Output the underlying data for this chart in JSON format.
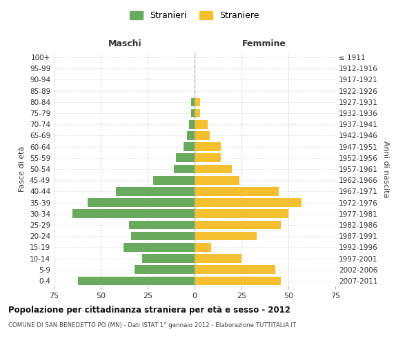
{
  "age_groups": [
    "0-4",
    "5-9",
    "10-14",
    "15-19",
    "20-24",
    "25-29",
    "30-34",
    "35-39",
    "40-44",
    "45-49",
    "50-54",
    "55-59",
    "60-64",
    "65-69",
    "70-74",
    "75-79",
    "80-84",
    "85-89",
    "90-94",
    "95-99",
    "100+"
  ],
  "birth_years": [
    "2007-2011",
    "2002-2006",
    "1997-2001",
    "1992-1996",
    "1987-1991",
    "1982-1986",
    "1977-1981",
    "1972-1976",
    "1967-1971",
    "1962-1966",
    "1957-1961",
    "1952-1956",
    "1947-1951",
    "1942-1946",
    "1937-1941",
    "1932-1936",
    "1927-1931",
    "1922-1926",
    "1917-1921",
    "1912-1916",
    "≤ 1911"
  ],
  "maschi": [
    62,
    32,
    28,
    38,
    34,
    35,
    65,
    57,
    42,
    22,
    11,
    10,
    6,
    4,
    3,
    2,
    2,
    0,
    0,
    0,
    0
  ],
  "femmine": [
    46,
    43,
    25,
    9,
    33,
    46,
    50,
    57,
    45,
    24,
    20,
    14,
    14,
    8,
    7,
    3,
    3,
    0,
    0,
    0,
    0
  ],
  "color_maschi": "#6aaa5e",
  "color_femmine": "#f5c030",
  "title": "Popolazione per cittadinanza straniera per età e sesso - 2012",
  "subtitle": "COMUNE DI SAN BENEDETTO PO (MN) - Dati ISTAT 1° gennaio 2012 - Elaborazione TUTTITALIA.IT",
  "xlabel_left": "Maschi",
  "xlabel_right": "Femmine",
  "ylabel_left": "Fasce di età",
  "ylabel_right": "Anni di nascita",
  "legend_maschi": "Stranieri",
  "legend_femmine": "Straniere",
  "xlim": 75,
  "background_color": "#ffffff",
  "grid_color": "#cccccc"
}
